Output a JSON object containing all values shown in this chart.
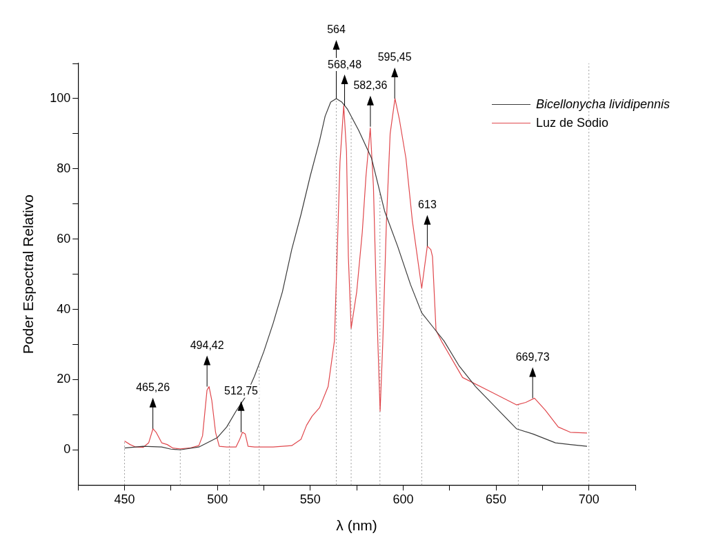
{
  "chart_data": {
    "type": "line",
    "xlabel": "λ (nm)",
    "ylabel": "Poder Espectral Relativo",
    "xlim": [
      425,
      725
    ],
    "ylim": [
      -10,
      110
    ],
    "xticks": [
      {
        "value": 425,
        "label": null
      },
      450,
      {
        "value": 475,
        "label": null
      },
      500,
      {
        "value": 525,
        "label": null
      },
      550,
      {
        "value": 575,
        "label": null
      },
      600,
      {
        "value": 625,
        "label": null
      },
      650,
      {
        "value": 675,
        "label": null
      },
      700,
      {
        "value": 725,
        "label": null
      }
    ],
    "yticks": [
      0,
      {
        "value": 10,
        "label": null
      },
      20,
      {
        "value": 30,
        "label": null
      },
      40,
      {
        "value": 50,
        "label": null
      },
      60,
      {
        "value": 70,
        "label": null
      },
      80,
      {
        "value": 90,
        "label": null
      },
      100,
      {
        "value": 110,
        "label": null
      }
    ],
    "grid": false,
    "legend": "top right",
    "marker": "none",
    "line_style": "solid",
    "series": [
      {
        "name": "Bicellonycha lividipennis",
        "color": "#3a3a3a",
        "x": [
          450,
          460,
          470,
          475,
          480,
          490,
          500,
          505,
          510,
          515,
          520,
          525,
          530,
          535,
          540,
          545,
          550,
          555,
          558,
          561,
          564,
          567,
          570,
          576,
          583,
          590,
          597,
          604,
          610,
          616,
          622,
          630,
          639,
          650,
          661,
          670,
          682,
          690,
          699
        ],
        "values": [
          0.5,
          1,
          0.8,
          0.2,
          0,
          0.8,
          3.5,
          6.5,
          11,
          15,
          21,
          28,
          36,
          45,
          57,
          67,
          78,
          88,
          95,
          99,
          100,
          99,
          97,
          91,
          83,
          68,
          58,
          47,
          39,
          35,
          31,
          24,
          18,
          12,
          6,
          4.5,
          2,
          1.5,
          1
        ]
      },
      {
        "name": "Luz de Sodio",
        "color": "#e0474c",
        "x": [
          450,
          453,
          456,
          460,
          463,
          465.3,
          467,
          470,
          473,
          476,
          480,
          485,
          490,
          492,
          494.4,
          495.5,
          497,
          499,
          501,
          505,
          510,
          512,
          513.5,
          515,
          516.5,
          520,
          530,
          540,
          545,
          548,
          551,
          555,
          559.6,
          563,
          566,
          568,
          569.5,
          570.5,
          572,
          575,
          578,
          580,
          582.3,
          584,
          585.5,
          587.6,
          589,
          591,
          593,
          595.6,
          598,
          601.5,
          605,
          610,
          613,
          614.9,
          615.8,
          617.7,
          621,
          632,
          647.7,
          661,
          666,
          670.7,
          676.5,
          683.5,
          690,
          699
        ],
        "values": [
          2.5,
          1.5,
          0.8,
          0.7,
          2,
          6,
          5,
          2,
          1.5,
          0.5,
          0.3,
          0.5,
          1.2,
          4,
          17,
          18,
          14,
          5,
          1,
          0.8,
          0.8,
          3,
          5,
          4.5,
          1,
          0.8,
          0.8,
          1.2,
          3,
          7,
          9.6,
          12,
          18,
          31,
          82,
          98,
          85,
          55,
          34.6,
          45,
          62,
          78,
          91.6,
          75,
          45,
          11,
          30,
          65,
          90,
          100,
          94,
          83,
          65,
          46,
          58,
          57,
          55,
          34,
          30.6,
          20.6,
          16.4,
          12.8,
          13.5,
          14.7,
          11.3,
          6.5,
          5,
          4.8
        ]
      }
    ],
    "annotations": [
      {
        "text": "465,26",
        "x": 465.26,
        "y": 6
      },
      {
        "text": "494,42",
        "x": 494.42,
        "y": 18
      },
      {
        "text": "512,75",
        "x": 512.75,
        "y": 5
      },
      {
        "text": "568,48",
        "x": 568.48,
        "y": 98
      },
      {
        "text": "564",
        "x": 564,
        "y": 100
      },
      {
        "text": "582,36",
        "x": 582.36,
        "y": 92
      },
      {
        "text": "595,45",
        "x": 595.45,
        "y": 100
      },
      {
        "text": "613",
        "x": 613,
        "y": 58
      },
      {
        "text": "669,73",
        "x": 669.73,
        "y": 14.7
      }
    ],
    "ref_lines": [
      {
        "axis": "x",
        "value": 450,
        "line_style": "dotted",
        "color": "#9a9a9a"
      },
      {
        "axis": "x",
        "value": 480,
        "line_style": "dotted",
        "color": "#9a9a9a"
      },
      {
        "axis": "x",
        "value": 506.5,
        "line_style": "dotted",
        "color": "#9a9a9a"
      },
      {
        "axis": "x",
        "value": 522.5,
        "line_style": "dotted",
        "color": "#9a9a9a"
      },
      {
        "axis": "x",
        "value": 564,
        "line_style": "dotted",
        "color": "#9a9a9a"
      },
      {
        "axis": "x",
        "value": 572,
        "line_style": "dotted",
        "color": "#9a9a9a"
      },
      {
        "axis": "x",
        "value": 587.5,
        "line_style": "dotted",
        "color": "#9a9a9a"
      },
      {
        "axis": "x",
        "value": 610,
        "line_style": "dotted",
        "color": "#9a9a9a"
      },
      {
        "axis": "x",
        "value": 662,
        "line_style": "dotted",
        "color": "#9a9a9a"
      },
      {
        "axis": "x",
        "value": 700,
        "line_style": "dotted",
        "color": "#9a9a9a"
      }
    ]
  }
}
